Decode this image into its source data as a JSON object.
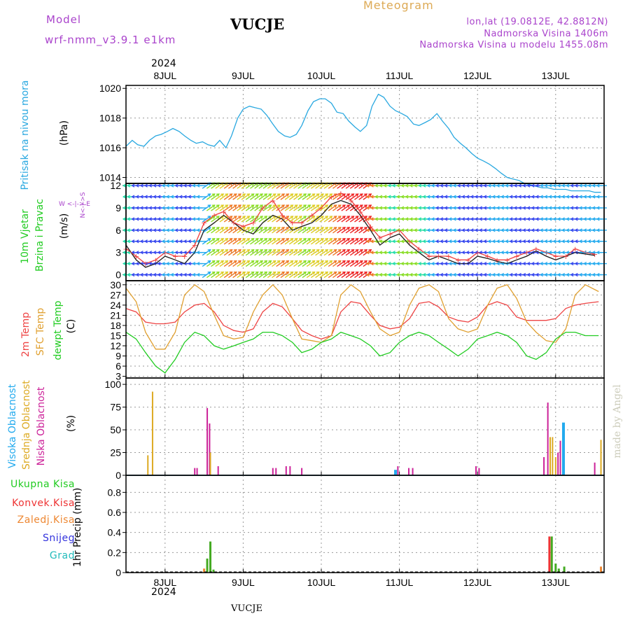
{
  "header": {
    "model_label": "Model",
    "model_name": "wrf-nmm_v3.9.1 e1km",
    "station": "VUCJE",
    "title": "Meteogram",
    "coords": "lon,lat (19.0812E, 42.8812N)",
    "elevation": "Nadmorska Visina 1406m",
    "model_elevation": "Nadmorska Visina u modelu 1455.08m",
    "year_top": "2024",
    "year_bottom": "2024",
    "footer_station": "VUCJE",
    "credit": "made by Angel"
  },
  "colors": {
    "pressure": "#29a8e0",
    "temp2m": "#ee4444",
    "sfc_temp": "#e0a030",
    "dewpoint": "#22cc22",
    "high_cloud": "#22aaee",
    "mid_cloud": "#ddaa22",
    "low_cloud": "#cc2299",
    "total_precip": "#44aa22",
    "conv_precip": "#ee3333",
    "frz_precip": "#ee8833",
    "snow": "#3333dd",
    "hail": "#22bbbb",
    "purple_text": "#aa44cc",
    "gold_text": "#ddaa55"
  },
  "chart_data": [
    {
      "type": "line",
      "panel": "pressure",
      "ylabel": "Pritisak na nivou mora",
      "unit": "(hPa)",
      "ylim": [
        1013.6,
        1020.2
      ],
      "yticks": [
        1014,
        1016,
        1018,
        1020
      ],
      "grid": true,
      "x": [
        0,
        0.08,
        0.15,
        0.23,
        0.3,
        0.38,
        0.45,
        0.53,
        0.6,
        0.68,
        0.75,
        0.83,
        0.9,
        0.98,
        1.05,
        1.13,
        1.2,
        1.28,
        1.35,
        1.43,
        1.5,
        1.58,
        1.65,
        1.73,
        1.8,
        1.88,
        1.95,
        2.03,
        2.1,
        2.18,
        2.25,
        2.33,
        2.4,
        2.48,
        2.55,
        2.63,
        2.7,
        2.78,
        2.85,
        2.93,
        3,
        3.08,
        3.15,
        3.23,
        3.3,
        3.38,
        3.45,
        3.53,
        3.6,
        3.68,
        3.75,
        3.83,
        3.9,
        3.98,
        4.05,
        4.13,
        4.2,
        4.28,
        4.35,
        4.43,
        4.5,
        4.58,
        4.65,
        4.73,
        4.8,
        4.88,
        4.95,
        5.03,
        5.1,
        5.18,
        5.25,
        5.33,
        5.4,
        5.48,
        5.55,
        5.63,
        5.7,
        5.78,
        5.85,
        5.93,
        6,
        6.08
      ],
      "series": [
        {
          "name": "Pritisak na nivou mora",
          "values": [
            1016.1,
            1016.5,
            1016.2,
            1016.1,
            1016.5,
            1016.8,
            1016.9,
            1017.1,
            1017.3,
            1017.1,
            1016.8,
            1016.5,
            1016.3,
            1016.4,
            1016.2,
            1016.1,
            1016.5,
            1016.0,
            1016.8,
            1018.0,
            1018.6,
            1018.8,
            1018.7,
            1018.6,
            1018.2,
            1017.6,
            1017.1,
            1016.8,
            1016.7,
            1016.9,
            1017.5,
            1018.5,
            1019.1,
            1019.3,
            1019.3,
            1019.0,
            1018.4,
            1018.3,
            1017.8,
            1017.4,
            1017.1,
            1017.5,
            1018.8,
            1019.6,
            1019.4,
            1018.8,
            1018.5,
            1018.3,
            1018.1,
            1017.6,
            1017.5,
            1017.7,
            1017.9,
            1018.3,
            1017.8,
            1017.3,
            1016.7,
            1016.3,
            1016.0,
            1015.6,
            1015.3,
            1015.1,
            1014.9,
            1014.6,
            1014.3,
            1014.0,
            1013.9,
            1013.8,
            1013.6,
            1013.5,
            1013.4,
            1013.3,
            1013.3,
            1013.2,
            1013.2,
            1013.2,
            1013.1,
            1013.1,
            1013.1,
            1013.1,
            1013.0,
            1013.0
          ]
        }
      ]
    },
    {
      "type": "line",
      "panel": "wind",
      "ylabel": "10m Vjetar Brzina i Pravac",
      "unit": "(m/s)",
      "compass": "W <-|-> E",
      "compass_v": "N<-|->S",
      "ylim": [
        -0.8,
        12.3
      ],
      "yticks": [
        0,
        3,
        6,
        9,
        12
      ],
      "grid": true,
      "x": [
        0,
        0.13,
        0.25,
        0.38,
        0.5,
        0.63,
        0.75,
        0.88,
        1,
        1.13,
        1.25,
        1.38,
        1.5,
        1.63,
        1.75,
        1.88,
        2,
        2.13,
        2.25,
        2.38,
        2.5,
        2.63,
        2.75,
        2.88,
        3,
        3.13,
        3.25,
        3.38,
        3.5,
        3.63,
        3.75,
        3.88,
        4,
        4.13,
        4.25,
        4.38,
        4.5,
        4.63,
        4.75,
        4.88,
        5,
        5.13,
        5.25,
        5.38,
        5.5,
        5.63,
        5.75,
        5.88,
        6
      ],
      "series": [
        {
          "name": "Brzina vjetra",
          "values": [
            4,
            2,
            1,
            1.5,
            2.5,
            2,
            1.5,
            3,
            6,
            7,
            8,
            7,
            6,
            5.5,
            7,
            8,
            7.5,
            6,
            6.5,
            7,
            8,
            9.5,
            10,
            9.5,
            8,
            6,
            4,
            5,
            5.5,
            4,
            3,
            2,
            2.5,
            2,
            1.5,
            1.5,
            2.5,
            2.2,
            1.8,
            1.5,
            2,
            2.5,
            3.2,
            2.5,
            2,
            2.5,
            3,
            2.8,
            2.6
          ]
        },
        {
          "name": "Udari vjetra",
          "values": [
            3.5,
            2.5,
            1.5,
            2,
            3,
            2.5,
            2.5,
            4,
            7,
            8,
            8.5,
            7,
            6.5,
            7,
            9,
            10,
            8,
            7,
            7,
            8,
            9,
            10.5,
            11,
            10,
            8.5,
            6.5,
            5,
            5.5,
            6,
            4.5,
            3.5,
            2.5,
            2.5,
            2.5,
            2,
            2,
            3,
            2.5,
            2,
            2,
            2.5,
            3,
            3.5,
            3,
            2.5,
            2.5,
            3.5,
            3,
            2.8
          ]
        }
      ]
    },
    {
      "type": "line",
      "panel": "temperature",
      "ylabels": [
        "2m Temp",
        "SFC Temp",
        "dewpt Temp"
      ],
      "unit": "(C)",
      "ylim": [
        2.5,
        31.2
      ],
      "yticks": [
        3,
        6,
        9,
        12,
        15,
        18,
        21,
        24,
        27,
        30
      ],
      "grid": true,
      "x": [
        0,
        0.13,
        0.25,
        0.38,
        0.5,
        0.63,
        0.75,
        0.88,
        1,
        1.13,
        1.25,
        1.38,
        1.5,
        1.63,
        1.75,
        1.88,
        2,
        2.13,
        2.25,
        2.38,
        2.5,
        2.63,
        2.75,
        2.88,
        3,
        3.13,
        3.25,
        3.38,
        3.5,
        3.63,
        3.75,
        3.88,
        4,
        4.13,
        4.25,
        4.38,
        4.5,
        4.63,
        4.75,
        4.88,
        5,
        5.13,
        5.25,
        5.38,
        5.5,
        5.63,
        5.75,
        5.88,
        6.05
      ],
      "series": [
        {
          "name": "2m Temp",
          "values": [
            23,
            22,
            19,
            18.5,
            18.5,
            19,
            22,
            24,
            24.5,
            22,
            18,
            16.5,
            16,
            17,
            22,
            24.5,
            23.5,
            20,
            16.5,
            15,
            14,
            15,
            22,
            25,
            24.5,
            21,
            18,
            17,
            17.5,
            20,
            24.5,
            25,
            23.5,
            20.5,
            19.5,
            19,
            20.5,
            24,
            25,
            24,
            20.5,
            19.5,
            19.5,
            19.5,
            20,
            23,
            24,
            24.5,
            25
          ]
        },
        {
          "name": "SFC Temp",
          "values": [
            29,
            25,
            16,
            11,
            11,
            16,
            27,
            30,
            28,
            21,
            15,
            14,
            14.5,
            22,
            27,
            30,
            27,
            20,
            14,
            13.5,
            13,
            15,
            27,
            30,
            28,
            22,
            17,
            15,
            16,
            24,
            29,
            30,
            28,
            20,
            17,
            16,
            17,
            24,
            29,
            30,
            26,
            19,
            16,
            13.5,
            13,
            17,
            27,
            30,
            28
          ]
        },
        {
          "name": "dewpt Temp",
          "values": [
            16,
            14,
            10,
            6,
            4,
            8,
            13,
            16,
            15,
            12,
            11,
            12,
            13,
            14,
            16,
            16,
            15,
            13,
            10,
            11,
            13,
            14,
            16,
            15,
            14,
            12,
            9,
            10,
            13,
            15,
            16,
            15,
            13,
            11,
            9,
            11,
            14,
            15,
            16,
            15,
            13,
            9,
            8,
            10,
            14,
            16,
            16,
            15,
            15
          ]
        }
      ]
    },
    {
      "type": "bar",
      "panel": "clouds",
      "ylabels": [
        "Visoka Oblacnost",
        "Srednja Oblacnost",
        "Niska Oblacnost"
      ],
      "unit": "(%)",
      "ylim": [
        0,
        107
      ],
      "yticks": [
        0,
        25,
        50,
        75,
        100
      ],
      "grid": true,
      "bars": [
        {
          "series": "Srednja Oblacnost",
          "x": 0.28,
          "value": 22
        },
        {
          "series": "Srednja Oblacnost",
          "x": 0.34,
          "value": 92
        },
        {
          "series": "Niska Oblacnost",
          "x": 0.88,
          "value": 8
        },
        {
          "series": "Niska Oblacnost",
          "x": 0.91,
          "value": 8
        },
        {
          "series": "Niska Oblacnost",
          "x": 1.04,
          "value": 74
        },
        {
          "series": "Niska Oblacnost",
          "x": 1.07,
          "value": 57
        },
        {
          "series": "Srednja Oblacnost",
          "x": 1.08,
          "value": 25
        },
        {
          "series": "Niska Oblacnost",
          "x": 1.18,
          "value": 10
        },
        {
          "series": "Niska Oblacnost",
          "x": 1.88,
          "value": 8
        },
        {
          "series": "Niska Oblacnost",
          "x": 1.92,
          "value": 8
        },
        {
          "series": "Niska Oblacnost",
          "x": 2.05,
          "value": 10
        },
        {
          "series": "Niska Oblacnost",
          "x": 2.1,
          "value": 10
        },
        {
          "series": "Niska Oblacnost",
          "x": 2.25,
          "value": 8
        },
        {
          "series": "Visoka Oblacnost",
          "x": 3.45,
          "value": 6
        },
        {
          "series": "Niska Oblacnost",
          "x": 3.48,
          "value": 10
        },
        {
          "series": "Niska Oblacnost",
          "x": 3.62,
          "value": 8
        },
        {
          "series": "Niska Oblacnost",
          "x": 3.67,
          "value": 8
        },
        {
          "series": "Niska Oblacnost",
          "x": 4.48,
          "value": 10
        },
        {
          "series": "Niska Oblacnost",
          "x": 4.52,
          "value": 8
        },
        {
          "series": "Niska Oblacnost",
          "x": 5.35,
          "value": 20
        },
        {
          "series": "Niska Oblacnost",
          "x": 5.4,
          "value": 80
        },
        {
          "series": "Srednja Oblacnost",
          "x": 5.43,
          "value": 42
        },
        {
          "series": "Srednja Oblacnost",
          "x": 5.46,
          "value": 42
        },
        {
          "series": "Srednja Oblacnost",
          "x": 5.5,
          "value": 20
        },
        {
          "series": "Niska Oblacnost",
          "x": 5.53,
          "value": 25
        },
        {
          "series": "Niska Oblacnost",
          "x": 5.56,
          "value": 38
        },
        {
          "series": "Visoka Oblacnost",
          "x": 5.6,
          "value": 58
        },
        {
          "series": "Niska Oblacnost",
          "x": 6.0,
          "value": 14
        },
        {
          "series": "Srednja Oblacnost",
          "x": 6.08,
          "value": 39
        }
      ]
    },
    {
      "type": "bar",
      "panel": "precipitation",
      "ylabel": "1hr Precip (mm)",
      "legend": [
        "Ukupna Kisa",
        "Konvek.Kisa",
        "Zaledj.Kisa",
        "Snijeg",
        "Grad"
      ],
      "ylim": [
        0,
        0.97
      ],
      "yticks": [
        0,
        0.2,
        0.4,
        0.6,
        0.8
      ],
      "grid": true,
      "bars": [
        {
          "series": "Zaledj.Kisa",
          "x": 1.0,
          "value": 0.04
        },
        {
          "series": "Ukupna Kisa",
          "x": 1.04,
          "value": 0.14
        },
        {
          "series": "Ukupna Kisa",
          "x": 1.08,
          "value": 0.31
        },
        {
          "series": "Ukupna Kisa",
          "x": 1.12,
          "value": 0.03
        },
        {
          "series": "Konvek.Kisa",
          "x": 5.42,
          "value": 0.36
        },
        {
          "series": "Ukupna Kisa",
          "x": 5.45,
          "value": 0.36
        },
        {
          "series": "Ukupna Kisa",
          "x": 5.5,
          "value": 0.09
        },
        {
          "series": "Ukupna Kisa",
          "x": 5.54,
          "value": 0.04
        },
        {
          "series": "Ukupna Kisa",
          "x": 5.61,
          "value": 0.06
        },
        {
          "series": "Zaledj.Kisa",
          "x": 6.08,
          "value": 0.06
        }
      ]
    }
  ],
  "x_axis": {
    "tick_labels": [
      "8JUL",
      "9JUL",
      "10JUL",
      "11JUL",
      "12JUL",
      "13JUL"
    ],
    "tick_days": [
      0.5,
      1.5,
      2.5,
      3.5,
      4.5,
      5.5
    ],
    "range_days": [
      0,
      6.12
    ]
  }
}
